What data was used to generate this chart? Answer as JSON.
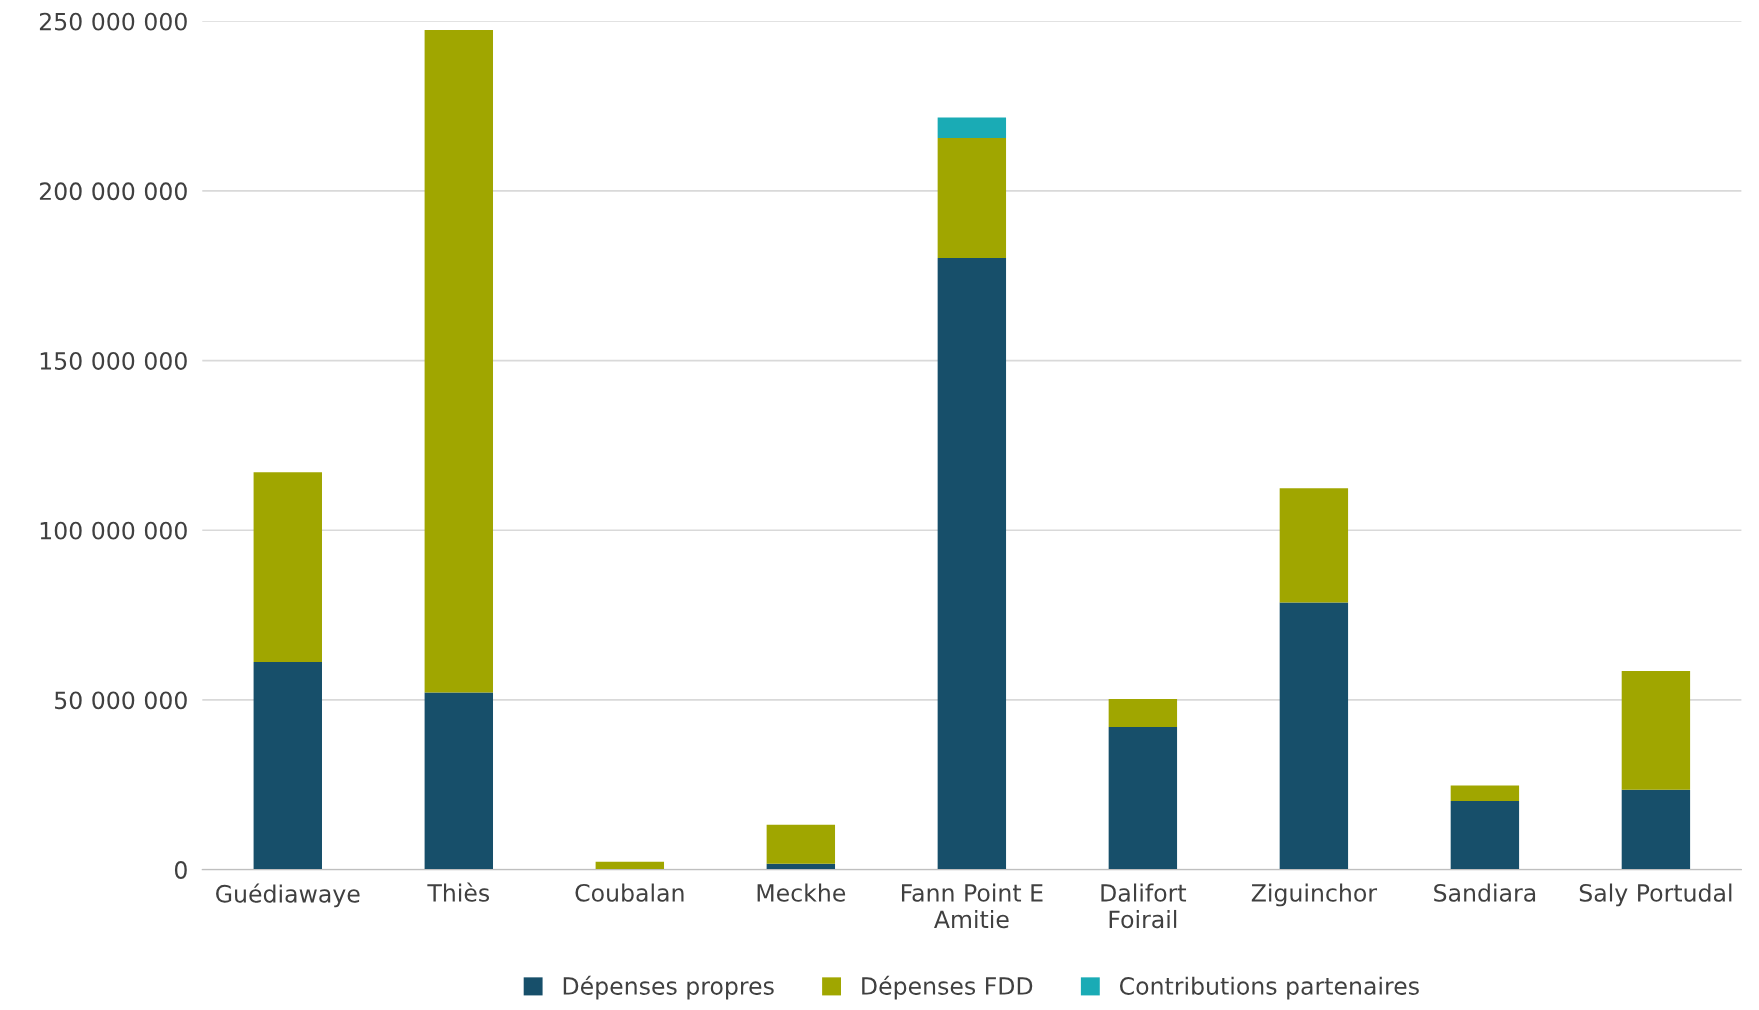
{
  "chart_data": {
    "type": "bar",
    "stacked": true,
    "categories": [
      "Guédiawaye",
      "Thiès",
      "Coubalan",
      "Meckhe",
      "Fann Point E\nAmitie",
      "Dalifort\nFoirail",
      "Ziguinchor",
      "Sandiara",
      "Saly Portudal"
    ],
    "series": [
      {
        "name": "Dépenses propres",
        "color": "#174f6a",
        "values": [
          61200000,
          52200000,
          null,
          1700000,
          180200000,
          42000000,
          78700000,
          20200000,
          23500000
        ]
      },
      {
        "name": "Dépenses FDD",
        "color": "#a0a600",
        "values": [
          55900000,
          195200000,
          2300000,
          11500000,
          35400000,
          8300000,
          33700000,
          4600000,
          35000000
        ]
      },
      {
        "name": "Contributions partenaires",
        "color": "#1aabb5",
        "values": [
          null,
          null,
          null,
          null,
          6000000,
          null,
          null,
          null,
          null
        ]
      }
    ],
    "ylim": [
      0,
      250000000
    ],
    "yticks": [
      0,
      {
        "value": 50000000,
        "label": "50 000 000"
      },
      {
        "value": 100000000,
        "label": "100 000 000"
      },
      {
        "value": 150000000,
        "label": "150 000 000"
      },
      {
        "value": 200000000,
        "label": "200 000 000"
      },
      {
        "value": 250000000,
        "label": "250 000 000"
      }
    ],
    "grid": "y",
    "legend": "bottom"
  }
}
